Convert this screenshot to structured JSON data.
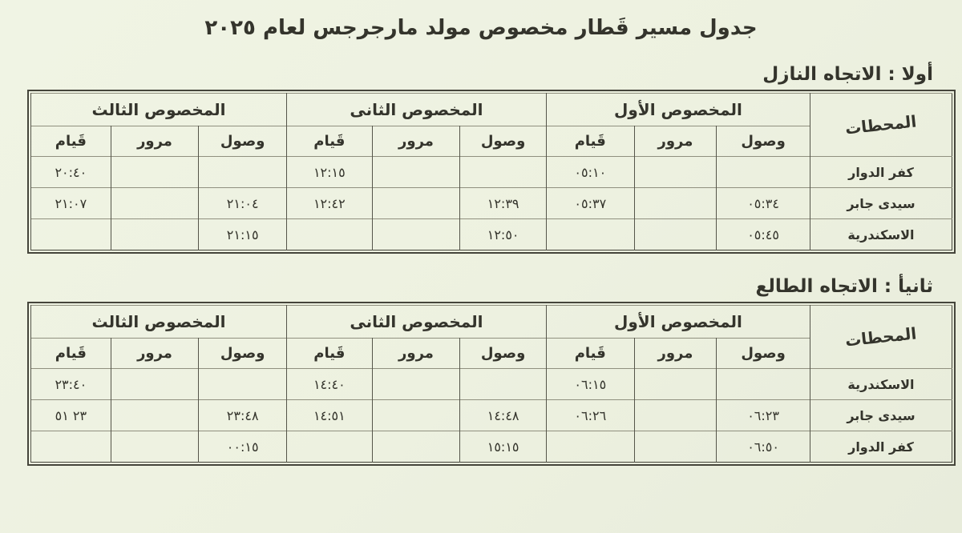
{
  "page": {
    "title": "جدول مسير قَطار مخصوص  مولد مارجرجس لعام ٢٠٢٥",
    "background": "#edf1e0",
    "ink": "#34342c"
  },
  "labels": {
    "stations_header": "المحطات",
    "arrival": "وصول",
    "passing": "مرور",
    "departure": "قَيام"
  },
  "sections": [
    {
      "heading": "أولا : الاتجاه النازل",
      "groups": [
        "المخصوص الأول",
        "المخصوص الثانى",
        "المخصوص الثالث"
      ],
      "rows": [
        {
          "station": "كفر الدوار",
          "cells": [
            "",
            "",
            "٠٥:١٠",
            "",
            "",
            "١٢:١٥",
            "",
            "",
            "٢٠:٤٠"
          ]
        },
        {
          "station": "سيدى جابر",
          "cells": [
            "٠٥:٣٤",
            "",
            "٠٥:٣٧",
            "١٢:٣٩",
            "",
            "١٢:٤٢",
            "٢١:٠٤",
            "",
            "٢١:٠٧"
          ]
        },
        {
          "station": "الاسكندرية",
          "cells": [
            "٠٥:٤٥",
            "",
            "",
            "١٢:٥٠",
            "",
            "",
            "٢١:١٥",
            "",
            ""
          ]
        }
      ]
    },
    {
      "heading": "ثانيأ : الاتجاه الطالع",
      "groups": [
        "المخصوص الأول",
        "المخصوص الثانى",
        "المخصوص الثالث"
      ],
      "rows": [
        {
          "station": "الاسكندرية",
          "cells": [
            "",
            "",
            "٠٦:١٥",
            "",
            "",
            "١٤:٤٠",
            "",
            "",
            "٢٣:٤٠"
          ]
        },
        {
          "station": "سيدى جابر",
          "cells": [
            "٠٦:٢٣",
            "",
            "٠٦:٢٦",
            "١٤:٤٨",
            "",
            "١٤:٥١",
            "٢٣:٤٨",
            "",
            "٢٣ ٥١"
          ]
        },
        {
          "station": "كفر الدوار",
          "cells": [
            "٠٦:٥٠",
            "",
            "",
            "١٥:١٥",
            "",
            "",
            "٠٠:١٥",
            "",
            ""
          ]
        }
      ]
    }
  ]
}
